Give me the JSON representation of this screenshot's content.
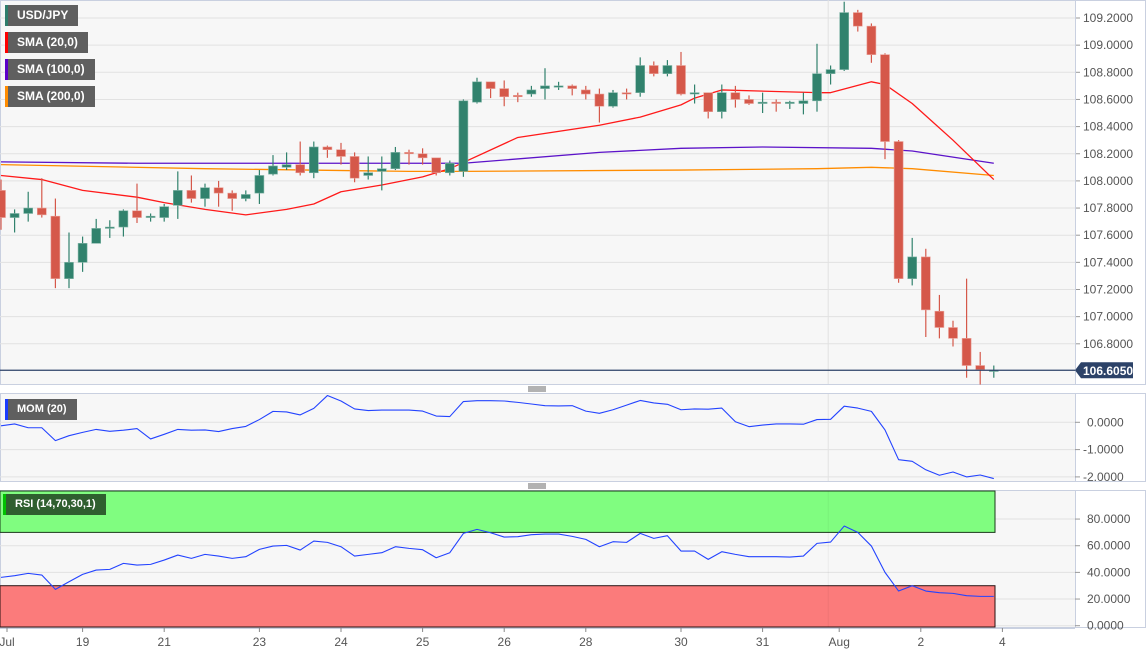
{
  "legends": {
    "price": [
      {
        "label": "USD/JPY",
        "color": "#2e7d6b"
      },
      {
        "label": "SMA (20,0)",
        "color": "#ff0000"
      },
      {
        "label": "SMA (100,0)",
        "color": "#5b00c8"
      },
      {
        "label": "SMA (200,0)",
        "color": "#ff8c00"
      }
    ],
    "mom": {
      "label": "MOM (20)",
      "color": "#1a3cff"
    },
    "rsi": {
      "label": "RSI (14,70,30,1)",
      "color": "#00c000"
    }
  },
  "colors": {
    "up": "#31826d",
    "down": "#d5584a",
    "sma20": "#ff1a1a",
    "sma100": "#5c13c9",
    "sma200": "#ff8c00",
    "indicator_line": "#2343ff",
    "last_price_bg": "#2c4268",
    "overbought": "#80fd80",
    "oversold": "#fb7b7b"
  },
  "chart_data": [
    {
      "type": "candlestick",
      "title": "USD/JPY",
      "ylim": [
        106.45,
        109.33
      ],
      "yticks": [
        "109.2000",
        "109.0000",
        "108.8000",
        "108.6000",
        "108.4000",
        "108.2000",
        "108.0000",
        "107.8000",
        "107.6000",
        "107.4000",
        "107.2000",
        "107.0000",
        "106.8000"
      ],
      "last_price": "106.6050",
      "x_labels": [
        {
          "label": "Jul",
          "index": 0
        },
        {
          "label": "19",
          "index": 6
        },
        {
          "label": "21",
          "index": 12
        },
        {
          "label": "23",
          "index": 19
        },
        {
          "label": "24",
          "index": 25
        },
        {
          "label": "25",
          "index": 31
        },
        {
          "label": "26",
          "index": 37
        },
        {
          "label": "28",
          "index": 43
        },
        {
          "label": "30",
          "index": 50
        },
        {
          "label": "31",
          "index": 56
        },
        {
          "label": "Aug",
          "index": 62
        },
        {
          "label": "2",
          "index": 68
        },
        {
          "label": "4",
          "index": 74
        }
      ],
      "ohlc": [
        [
          107.93,
          108.01,
          107.64,
          107.73
        ],
        [
          107.73,
          107.79,
          107.62,
          107.76
        ],
        [
          107.76,
          107.92,
          107.7,
          107.8
        ],
        [
          107.8,
          108.02,
          107.73,
          107.75
        ],
        [
          107.74,
          107.87,
          107.21,
          107.28
        ],
        [
          107.28,
          107.62,
          107.21,
          107.4
        ],
        [
          107.4,
          107.59,
          107.33,
          107.54
        ],
        [
          107.54,
          107.72,
          107.54,
          107.65
        ],
        [
          107.65,
          107.71,
          107.58,
          107.66
        ],
        [
          107.66,
          107.79,
          107.59,
          107.78
        ],
        [
          107.78,
          107.98,
          107.69,
          107.73
        ],
        [
          107.73,
          107.76,
          107.7,
          107.74
        ],
        [
          107.73,
          107.83,
          107.7,
          107.81
        ],
        [
          107.82,
          108.07,
          107.72,
          107.93
        ],
        [
          107.93,
          108.04,
          107.84,
          107.87
        ],
        [
          107.87,
          107.98,
          107.81,
          107.95
        ],
        [
          107.95,
          108.0,
          107.81,
          107.91
        ],
        [
          107.91,
          107.93,
          107.78,
          107.87
        ],
        [
          107.87,
          107.93,
          107.85,
          107.9
        ],
        [
          107.91,
          108.08,
          107.83,
          108.04
        ],
        [
          108.05,
          108.19,
          108.04,
          108.11
        ],
        [
          108.1,
          108.21,
          108.08,
          108.12
        ],
        [
          108.12,
          108.29,
          108.04,
          108.06
        ],
        [
          108.06,
          108.29,
          108.02,
          108.25
        ],
        [
          108.25,
          108.26,
          108.17,
          108.23
        ],
        [
          108.23,
          108.28,
          108.12,
          108.18
        ],
        [
          108.18,
          108.21,
          107.99,
          108.02
        ],
        [
          108.04,
          108.18,
          108.01,
          108.06
        ],
        [
          108.07,
          108.18,
          107.93,
          108.09
        ],
        [
          108.09,
          108.25,
          108.08,
          108.21
        ],
        [
          108.21,
          108.23,
          108.12,
          108.2
        ],
        [
          108.2,
          108.24,
          108.12,
          108.17
        ],
        [
          108.17,
          108.17,
          108.04,
          108.06
        ],
        [
          108.06,
          108.15,
          108.04,
          108.13
        ],
        [
          108.07,
          108.6,
          108.03,
          108.59
        ],
        [
          108.58,
          108.76,
          108.57,
          108.73
        ],
        [
          108.73,
          108.73,
          108.61,
          108.68
        ],
        [
          108.68,
          108.74,
          108.55,
          108.62
        ],
        [
          108.63,
          108.65,
          108.58,
          108.62
        ],
        [
          108.64,
          108.7,
          108.62,
          108.67
        ],
        [
          108.68,
          108.83,
          108.6,
          108.7
        ],
        [
          108.69,
          108.73,
          108.67,
          108.7
        ],
        [
          108.7,
          108.71,
          108.63,
          108.68
        ],
        [
          108.67,
          108.7,
          108.6,
          108.64
        ],
        [
          108.64,
          108.68,
          108.43,
          108.55
        ],
        [
          108.55,
          108.67,
          108.54,
          108.65
        ],
        [
          108.65,
          108.68,
          108.6,
          108.64
        ],
        [
          108.65,
          108.91,
          108.62,
          108.85
        ],
        [
          108.85,
          108.88,
          108.77,
          108.79
        ],
        [
          108.79,
          108.89,
          108.77,
          108.85
        ],
        [
          108.85,
          108.95,
          108.63,
          108.64
        ],
        [
          108.64,
          108.71,
          108.57,
          108.65
        ],
        [
          108.65,
          108.65,
          108.46,
          108.51
        ],
        [
          108.51,
          108.71,
          108.46,
          108.65
        ],
        [
          108.65,
          108.7,
          108.54,
          108.6
        ],
        [
          108.6,
          108.63,
          108.56,
          108.57
        ],
        [
          108.57,
          108.65,
          108.5,
          108.58
        ],
        [
          108.58,
          108.6,
          108.51,
          108.57
        ],
        [
          108.57,
          108.59,
          108.53,
          108.58
        ],
        [
          108.57,
          108.65,
          108.49,
          108.59
        ],
        [
          108.59,
          109.01,
          108.51,
          108.79
        ],
        [
          108.79,
          108.85,
          108.71,
          108.82
        ],
        [
          108.82,
          109.32,
          108.81,
          109.24
        ],
        [
          109.24,
          109.26,
          109.1,
          109.14
        ],
        [
          109.14,
          109.16,
          108.87,
          108.93
        ],
        [
          108.93,
          108.94,
          108.16,
          108.29
        ],
        [
          108.29,
          108.3,
          107.25,
          107.28
        ],
        [
          107.28,
          107.58,
          107.23,
          107.44
        ],
        [
          107.44,
          107.5,
          106.85,
          107.05
        ],
        [
          107.04,
          107.16,
          106.84,
          106.92
        ],
        [
          106.92,
          106.97,
          106.78,
          106.84
        ],
        [
          106.84,
          107.28,
          106.55,
          106.64
        ],
        [
          106.64,
          106.74,
          106.5,
          106.61
        ],
        [
          106.6,
          106.64,
          106.55,
          106.605
        ]
      ],
      "sma20": [
        [
          0,
          108.04
        ],
        [
          3,
          108.01
        ],
        [
          6,
          107.93
        ],
        [
          10,
          107.88
        ],
        [
          12,
          107.84
        ],
        [
          15,
          107.79
        ],
        [
          18,
          107.75
        ],
        [
          21,
          107.79
        ],
        [
          23,
          107.83
        ],
        [
          25,
          107.92
        ],
        [
          28,
          107.97
        ],
        [
          31,
          108.03
        ],
        [
          33,
          108.09
        ],
        [
          38,
          108.32
        ],
        [
          44,
          108.41
        ],
        [
          47,
          108.47
        ],
        [
          50,
          108.56
        ],
        [
          51,
          108.61
        ],
        [
          53,
          108.67
        ],
        [
          60,
          108.65
        ],
        [
          61,
          108.65
        ],
        [
          64,
          108.73
        ],
        [
          65,
          108.71
        ],
        [
          67,
          108.57
        ],
        [
          70,
          108.3
        ],
        [
          73,
          108.01
        ]
      ],
      "sma100": [
        [
          0,
          108.14
        ],
        [
          10,
          108.13
        ],
        [
          20,
          108.13
        ],
        [
          34,
          108.13
        ],
        [
          44,
          108.21
        ],
        [
          50,
          108.24
        ],
        [
          56,
          108.25
        ],
        [
          64,
          108.24
        ],
        [
          67,
          108.22
        ],
        [
          73,
          108.13
        ]
      ],
      "sma200": [
        [
          0,
          108.12
        ],
        [
          15,
          108.09
        ],
        [
          30,
          108.07
        ],
        [
          34,
          108.07
        ],
        [
          50,
          108.08
        ],
        [
          60,
          108.09
        ],
        [
          64,
          108.1
        ],
        [
          67,
          108.09
        ],
        [
          73,
          108.04
        ]
      ]
    },
    {
      "type": "line",
      "title": "MOM (20)",
      "ylim": [
        -2.15,
        1.05
      ],
      "yticks": [
        {
          "value": 0,
          "label": "0.0000"
        },
        {
          "value": -1,
          "label": "-1.0000"
        },
        {
          "value": -2,
          "label": "-2.0000"
        }
      ],
      "values": [
        -0.13,
        -0.06,
        -0.2,
        -0.2,
        -0.67,
        -0.49,
        -0.37,
        -0.26,
        -0.33,
        -0.29,
        -0.23,
        -0.61,
        -0.44,
        -0.26,
        -0.29,
        -0.28,
        -0.34,
        -0.23,
        -0.15,
        0.1,
        0.4,
        0.38,
        0.27,
        0.51,
        0.98,
        0.78,
        0.49,
        0.43,
        0.45,
        0.45,
        0.45,
        0.41,
        0.23,
        0.21,
        0.76,
        0.79,
        0.79,
        0.78,
        0.73,
        0.67,
        0.61,
        0.6,
        0.61,
        0.41,
        0.33,
        0.46,
        0.63,
        0.8,
        0.71,
        0.66,
        0.46,
        0.49,
        0.48,
        0.52,
        0.02,
        -0.16,
        -0.1,
        -0.06,
        -0.06,
        -0.07,
        0.1,
        0.11,
        0.59,
        0.52,
        0.4,
        -0.28,
        -1.37,
        -1.43,
        -1.74,
        -1.94,
        -1.82,
        -2.0,
        -1.93,
        -2.06
      ]
    },
    {
      "type": "line",
      "title": "RSI (14,70,30,1)",
      "ylim": [
        0,
        100
      ],
      "overbought": 70,
      "oversold": 30,
      "yticks": [
        {
          "value": 80,
          "label": "80.0000"
        },
        {
          "value": 60,
          "label": "60.0000"
        },
        {
          "value": 40,
          "label": "40.0000"
        },
        {
          "value": 20,
          "label": "20.0000"
        },
        {
          "value": 0,
          "label": "0.0000"
        }
      ],
      "values": [
        36.25,
        37.5,
        39.25,
        38,
        27.25,
        33,
        38.5,
        41.75,
        42.25,
        46.75,
        45.5,
        46,
        49.25,
        53,
        50.5,
        53.5,
        52.25,
        50.5,
        51.75,
        57.25,
        59.75,
        60.25,
        56.75,
        63.5,
        62.5,
        59.25,
        52.25,
        53.5,
        54.75,
        59.25,
        58,
        57,
        51,
        54.75,
        69.25,
        72.25,
        69.75,
        66.5,
        66.75,
        68.25,
        68.75,
        68.75,
        67,
        64.75,
        59.25,
        63,
        62.5,
        69.25,
        65.5,
        67.5,
        56,
        56,
        49.75,
        55.5,
        53.5,
        51.75,
        51.75,
        51.75,
        51.5,
        52.25,
        61.75,
        62.75,
        74.75,
        70,
        59.75,
        40,
        26,
        30,
        26,
        24.75,
        24.25,
        22.5,
        22,
        22
      ]
    }
  ]
}
